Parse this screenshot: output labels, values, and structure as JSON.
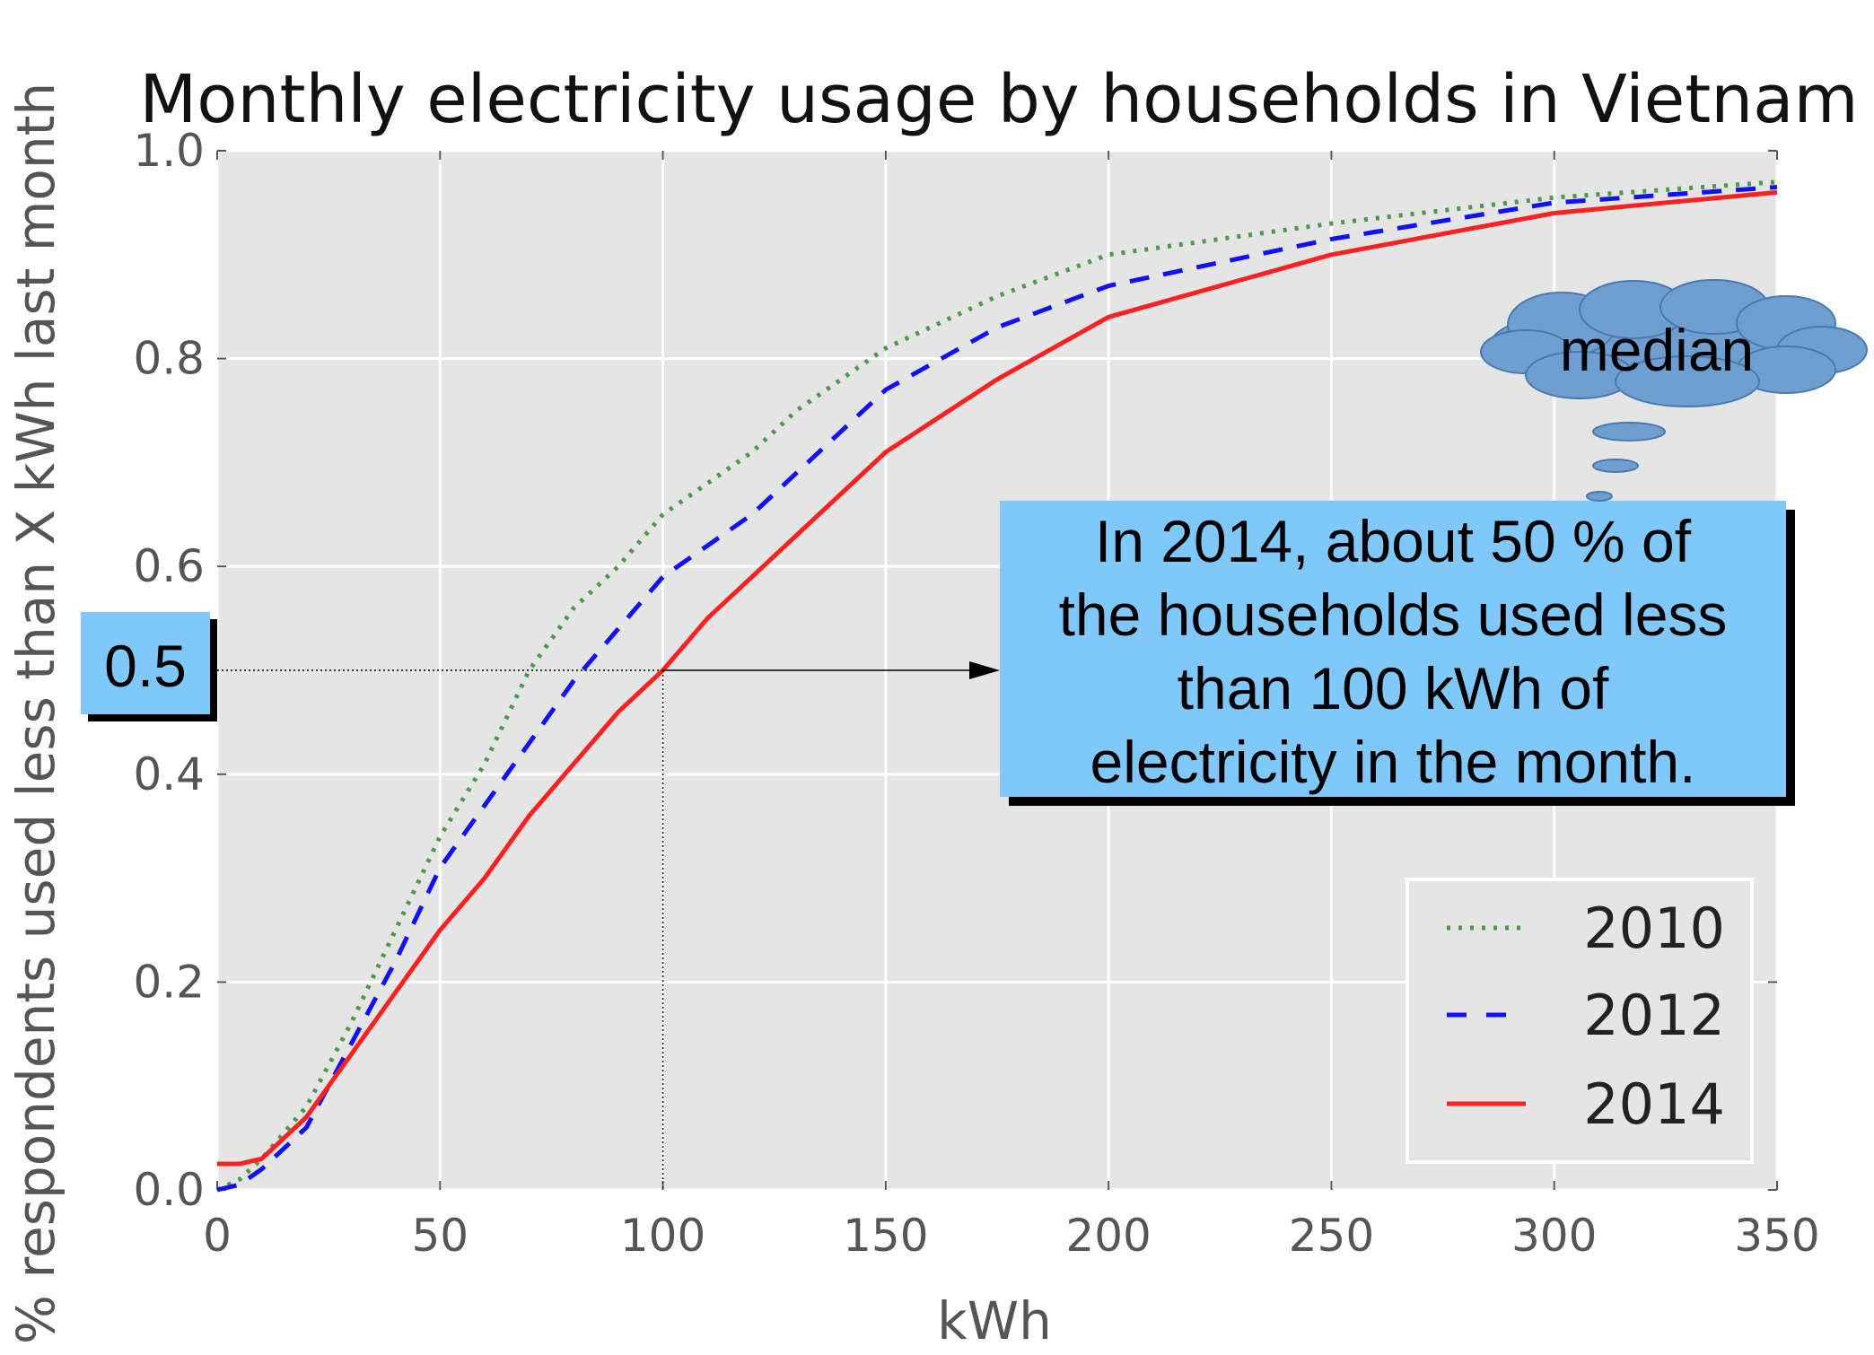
{
  "chart_data": {
    "type": "line",
    "title": "Monthly electricity usage by households in Vietnam",
    "xlabel": "kWh",
    "ylabel": "% respondents used less than X kWh last month",
    "xlim": [
      0,
      350
    ],
    "ylim": [
      0,
      1.0
    ],
    "x_ticks": [
      "0",
      "50",
      "100",
      "150",
      "200",
      "250",
      "300",
      "350"
    ],
    "y_ticks": [
      "0.0",
      "0.2",
      "0.4",
      "0.6",
      "0.8",
      "1.0"
    ],
    "grid": true,
    "legend_position": "bottom-right",
    "series": [
      {
        "name": "2010",
        "color": "#4a9a4a",
        "style": "dotted",
        "x": [
          0,
          5,
          10,
          20,
          30,
          40,
          50,
          60,
          70,
          80,
          90,
          100,
          110,
          120,
          130,
          140,
          150,
          175,
          200,
          250,
          300,
          350
        ],
        "y": [
          0.0,
          0.01,
          0.03,
          0.08,
          0.16,
          0.25,
          0.34,
          0.41,
          0.5,
          0.56,
          0.6,
          0.65,
          0.68,
          0.71,
          0.75,
          0.78,
          0.81,
          0.86,
          0.9,
          0.93,
          0.955,
          0.97
        ]
      },
      {
        "name": "2012",
        "color": "#1010ff",
        "style": "dashed",
        "x": [
          0,
          5,
          10,
          20,
          30,
          40,
          50,
          60,
          70,
          80,
          90,
          100,
          110,
          120,
          130,
          140,
          150,
          175,
          200,
          250,
          300,
          350
        ],
        "y": [
          0.0,
          0.005,
          0.02,
          0.06,
          0.14,
          0.22,
          0.31,
          0.37,
          0.43,
          0.49,
          0.54,
          0.59,
          0.62,
          0.65,
          0.69,
          0.73,
          0.77,
          0.83,
          0.87,
          0.915,
          0.95,
          0.965
        ]
      },
      {
        "name": "2014",
        "color": "#ff2020",
        "style": "solid",
        "x": [
          0,
          5,
          10,
          20,
          30,
          40,
          50,
          60,
          70,
          80,
          90,
          100,
          110,
          120,
          130,
          140,
          150,
          175,
          200,
          250,
          300,
          350
        ],
        "y": [
          0.025,
          0.025,
          0.03,
          0.07,
          0.13,
          0.19,
          0.25,
          0.3,
          0.36,
          0.41,
          0.46,
          0.5,
          0.55,
          0.59,
          0.63,
          0.67,
          0.71,
          0.78,
          0.84,
          0.9,
          0.94,
          0.96
        ]
      }
    ],
    "annotations": {
      "median_value": "0.5",
      "median_x": 100,
      "median_y": 0.5,
      "callout_text": [
        "In 2014, about 50 % of",
        "the households used less",
        "than 100 kWh of",
        "electricity in the month."
      ],
      "callout_color": "#80c8fa",
      "thought_bubble_text": "median",
      "thought_bubble_color": "#6e9fd0"
    }
  }
}
